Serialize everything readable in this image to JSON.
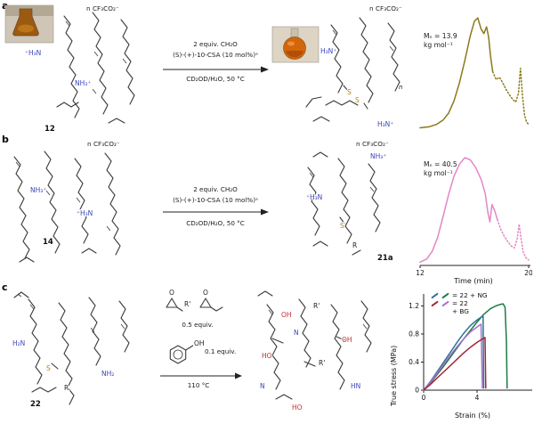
{
  "panel_a": {
    "label": "a",
    "reactant": {
      "counterion": "n CF₃CO₂⁻",
      "amine1": "⁺H₃N",
      "amine2": "NH₃⁺",
      "number": "12"
    },
    "conditions": {
      "line1": "2 equiv. CH₂O",
      "line2": "(S)-(+)-10-CSA (10 mol%)ᵃ",
      "line3": "CD₂OD/H₂O, 50 °C"
    },
    "product": {
      "counterion": "n CF₃CO₂⁻",
      "amine1": "H₃N⁺",
      "amine2": "H₃N⁺",
      "s1": "S",
      "s2": "S",
      "repeat_n": "n"
    }
  },
  "panel_b": {
    "label": "b",
    "reactant": {
      "counterion": "n CF₃CO₂⁻",
      "amine1": "NH₃⁺",
      "amine2": "⁺H₃N",
      "number": "14"
    },
    "conditions": {
      "line1": "2 equiv. CH₂O",
      "line2": "(S)-(+)-10-CSA (10 mol%)ᵃ",
      "line3": "CD₂OD/H₂O, 50 °C"
    },
    "product": {
      "counterion": "n CF₃CO₂⁻",
      "amine1": "⁺H₃N",
      "amine2": "NH₃⁺",
      "s1": "S",
      "r": "R",
      "number": "21a"
    }
  },
  "panel_c": {
    "label": "c",
    "reactant": {
      "amine1": "H₂N",
      "amine2": "NH₂",
      "s": "S",
      "r": "R",
      "number": "22"
    },
    "reagents": {
      "o1": "O",
      "rprime": "R'",
      "o2": "O",
      "equiv1": "0.5 equiv.",
      "oh": "OH",
      "equiv2": "0.1 equiv.",
      "temp": "110 °C"
    },
    "product": {
      "oh1": "OH",
      "rprime1": "R'",
      "n1": "N",
      "oh2": "OH",
      "ho1": "HO",
      "rprime2": "R'",
      "n2": "N",
      "hn": "HN",
      "ho2": "HO"
    }
  },
  "chart_data": [
    {
      "id": "gpc-a",
      "type": "line",
      "annotation_line1": "Mₙ = 13.9",
      "annotation_line2": "kg mol⁻¹",
      "color": "#8a7a1a",
      "xlim": [
        12,
        20
      ],
      "ylim": [
        0,
        1.08
      ],
      "series": [
        {
          "name": "GPC trace 12 (solid)",
          "style": "solid",
          "x": [
            12,
            12.7,
            13.2,
            13.7,
            14.1,
            14.5,
            14.9,
            15.3,
            15.7,
            16.0,
            16.25,
            16.5,
            16.7,
            16.9,
            17.05,
            17.2,
            17.35
          ],
          "y": [
            0.02,
            0.03,
            0.05,
            0.09,
            0.15,
            0.26,
            0.42,
            0.62,
            0.84,
            0.97,
            1.0,
            0.9,
            0.86,
            0.92,
            0.83,
            0.65,
            0.52
          ]
        },
        {
          "name": "GPC trace 12 (dotted tail)",
          "style": "dotted",
          "x": [
            17.35,
            17.6,
            17.85,
            18.1,
            18.35,
            18.6,
            18.85,
            19.05,
            19.25,
            19.4,
            19.55,
            19.7,
            19.85,
            20
          ],
          "y": [
            0.52,
            0.45,
            0.47,
            0.42,
            0.36,
            0.31,
            0.27,
            0.25,
            0.33,
            0.55,
            0.3,
            0.13,
            0.07,
            0.05
          ]
        }
      ]
    },
    {
      "id": "gpc-b",
      "type": "line",
      "annotation_line1": "Mₙ = 40.5",
      "annotation_line2": "kg mol⁻¹",
      "color": "#e287c6",
      "xlabel": "Time (min)",
      "xticks": [
        12,
        20
      ],
      "xlim": [
        12,
        20
      ],
      "ylim": [
        0,
        1.08
      ],
      "series": [
        {
          "name": "GPC trace 21a (solid)",
          "style": "solid",
          "x": [
            12,
            12.5,
            12.9,
            13.3,
            13.7,
            14.1,
            14.5,
            14.9,
            15.3,
            15.7,
            16.1,
            16.5,
            16.8,
            17.0,
            17.15,
            17.3,
            17.5,
            17.7
          ],
          "y": [
            0.03,
            0.06,
            0.13,
            0.26,
            0.45,
            0.65,
            0.82,
            0.93,
            0.99,
            0.97,
            0.9,
            0.79,
            0.66,
            0.48,
            0.4,
            0.56,
            0.5,
            0.42
          ]
        },
        {
          "name": "GPC trace 21a (dotted tail)",
          "style": "dotted",
          "x": [
            17.7,
            17.95,
            18.2,
            18.45,
            18.7,
            18.95,
            19.15,
            19.3,
            19.45,
            19.6,
            19.8,
            20
          ],
          "y": [
            0.42,
            0.33,
            0.27,
            0.22,
            0.18,
            0.16,
            0.24,
            0.38,
            0.24,
            0.12,
            0.07,
            0.05
          ]
        }
      ]
    },
    {
      "id": "stress",
      "type": "line",
      "xlabel": "Strain (%)",
      "ylabel": "True stress (MPa)",
      "xlim": [
        0,
        8
      ],
      "ylim": [
        0,
        1.32
      ],
      "xticks": [
        0,
        4
      ],
      "yticks": [
        0,
        0.4,
        0.8,
        1.2
      ],
      "legend": [
        {
          "label": "= 22 + NG",
          "colors": [
            "#2e7296",
            "#1d7a45"
          ]
        },
        {
          "label": "= 22\n+ BG",
          "colors": [
            "#a32638",
            "#a671ce"
          ]
        }
      ],
      "series": [
        {
          "name": "22 + NG (dark green)",
          "color": "#1d7a45",
          "style": "solid",
          "x": [
            0,
            0.5,
            1,
            1.5,
            2,
            2.5,
            3,
            3.5,
            4,
            4.5,
            5,
            5.4,
            5.7,
            5.95,
            6.1,
            6.2,
            6.25
          ],
          "y": [
            0,
            0.1,
            0.22,
            0.34,
            0.47,
            0.6,
            0.73,
            0.85,
            0.97,
            1.08,
            1.16,
            1.2,
            1.22,
            1.23,
            1.18,
            0.7,
            0.03
          ]
        },
        {
          "name": "22 + NG (teal)",
          "color": "#2e7296",
          "style": "solid",
          "x": [
            0,
            0.5,
            1,
            1.5,
            2,
            2.5,
            3,
            3.5,
            4,
            4.3,
            4.45,
            4.5
          ],
          "y": [
            0,
            0.12,
            0.26,
            0.4,
            0.54,
            0.68,
            0.81,
            0.92,
            1.0,
            1.04,
            1.05,
            0.03
          ]
        },
        {
          "name": "22 + BG (violet)",
          "color": "#a671ce",
          "style": "solid",
          "x": [
            0,
            0.5,
            1,
            1.5,
            2,
            2.5,
            3,
            3.5,
            4,
            4.3,
            4.4
          ],
          "y": [
            0,
            0.11,
            0.24,
            0.37,
            0.5,
            0.62,
            0.73,
            0.83,
            0.9,
            0.94,
            0.03
          ]
        },
        {
          "name": "22 + BG (dark red)",
          "color": "#a32638",
          "style": "solid",
          "x": [
            0,
            0.5,
            1,
            1.5,
            2,
            2.5,
            3,
            3.5,
            4,
            4.4,
            4.6,
            4.65
          ],
          "y": [
            0,
            0.08,
            0.17,
            0.26,
            0.35,
            0.44,
            0.53,
            0.61,
            0.68,
            0.73,
            0.75,
            0.03
          ]
        }
      ]
    }
  ]
}
